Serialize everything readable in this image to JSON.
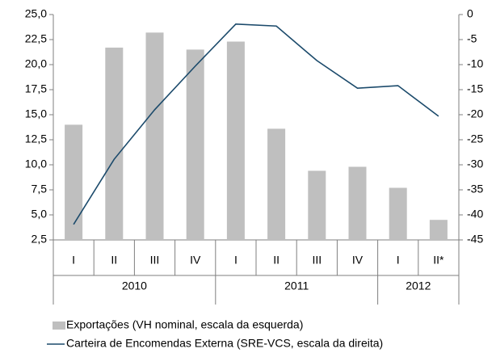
{
  "chart_data": {
    "type": "bar_line",
    "groups": [
      {
        "name": "2010",
        "categories": [
          "I",
          "II",
          "III",
          "IV"
        ]
      },
      {
        "name": "2011",
        "categories": [
          "I",
          "II",
          "III",
          "IV"
        ]
      },
      {
        "name": "2012",
        "categories": [
          "I",
          "II*"
        ]
      }
    ],
    "series": [
      {
        "name": "Exportações (VH nominal, escala da esquerda)",
        "type": "bar",
        "color": "#bfbfbf",
        "values": [
          14.0,
          21.7,
          23.2,
          21.5,
          22.3,
          13.6,
          9.4,
          9.8,
          7.7,
          4.5
        ]
      },
      {
        "name": "Carteira de Encomendas Externa (SRE-VCS, escala da direita)",
        "type": "line",
        "axis": "y2",
        "color": "#1b4a6b",
        "values": [
          -41.9,
          -28.9,
          -19.0,
          -10.3,
          -1.9,
          -2.3,
          -9.2,
          -14.7,
          -14.2,
          -20.3
        ]
      }
    ],
    "ylim": [
      2.5,
      25
    ],
    "yticks": [
      {
        "value": 2.5,
        "label": "2,5"
      },
      {
        "value": 5,
        "label": "5,0"
      },
      {
        "value": 7.5,
        "label": "7,5"
      },
      {
        "value": 10,
        "label": "10,0"
      },
      {
        "value": 12.5,
        "label": "12,5"
      },
      {
        "value": 15,
        "label": "15,0"
      },
      {
        "value": 17.5,
        "label": "17,5"
      },
      {
        "value": 20,
        "label": "20,0"
      },
      {
        "value": 22.5,
        "label": "22,5"
      },
      {
        "value": 25,
        "label": "25,0"
      }
    ],
    "y2lim": [
      -45,
      0
    ],
    "y2ticks": [
      -45,
      -40,
      -35,
      -30,
      -25,
      -20,
      -15,
      -10,
      -5,
      0
    ]
  }
}
